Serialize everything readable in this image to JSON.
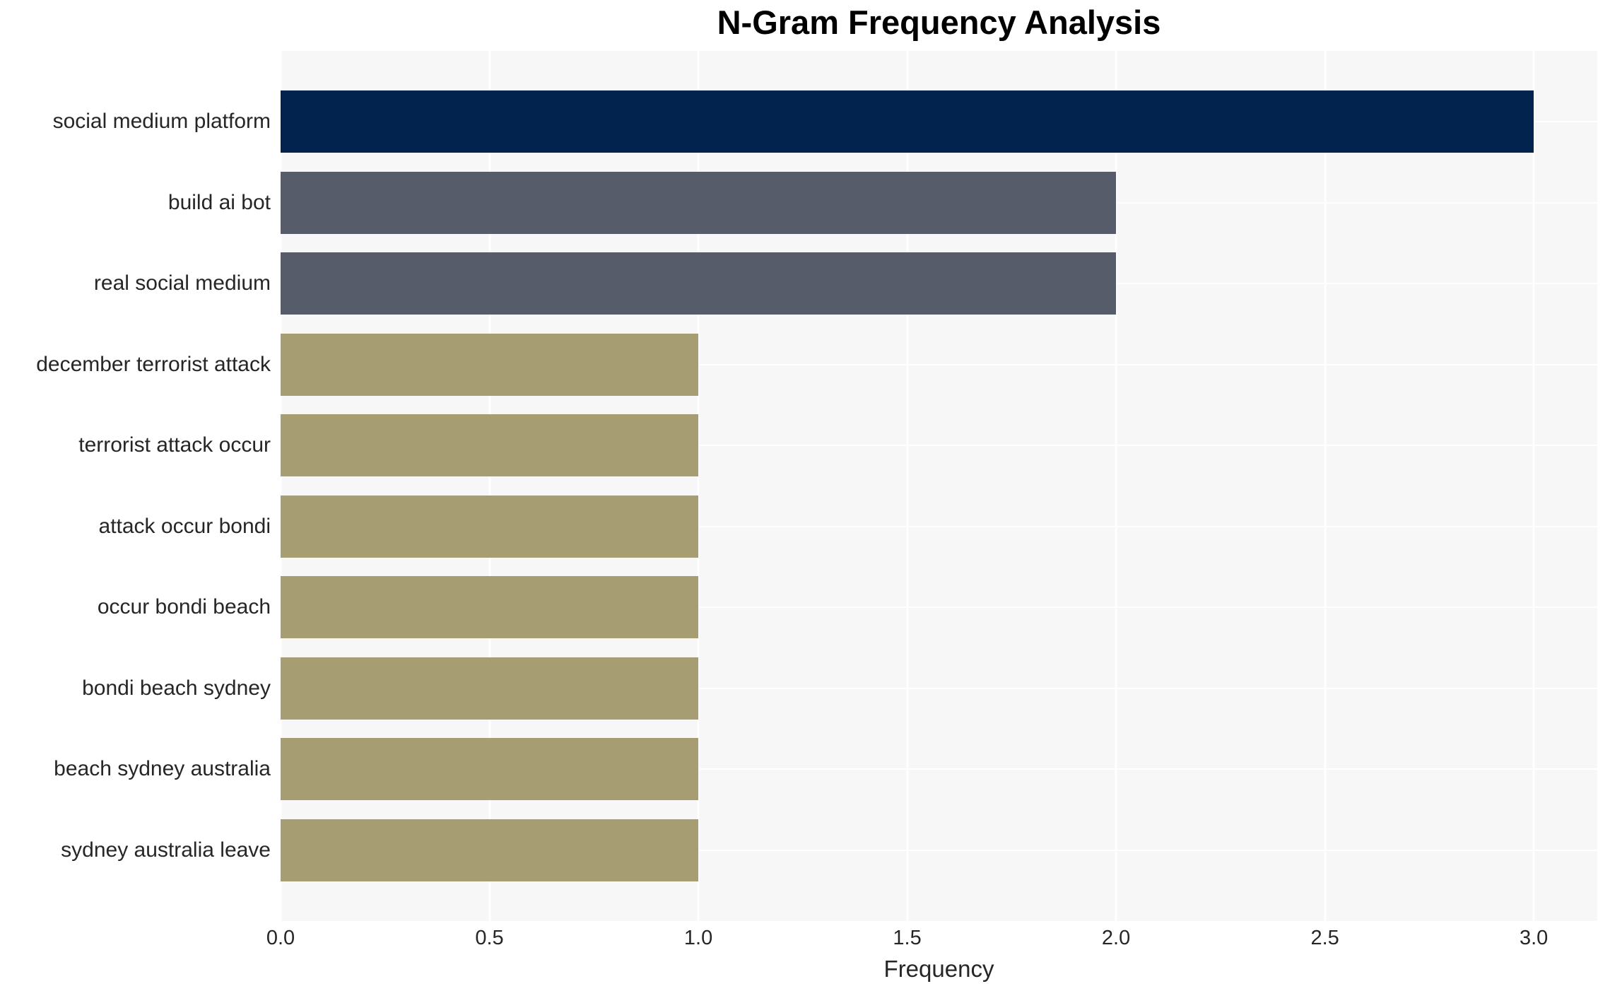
{
  "chart_data": {
    "type": "bar",
    "orientation": "horizontal",
    "title": "N-Gram Frequency Analysis",
    "xlabel": "Frequency",
    "ylabel": "",
    "categories": [
      "social medium platform",
      "build ai bot",
      "real social medium",
      "december terrorist attack",
      "terrorist attack occur",
      "attack occur bondi",
      "occur bondi beach",
      "bondi beach sydney",
      "beach sydney australia",
      "sydney australia leave"
    ],
    "values": [
      3,
      2,
      2,
      1,
      1,
      1,
      1,
      1,
      1,
      1
    ],
    "bar_colors": [
      "#02234d",
      "#575c6b",
      "#575c6b",
      "#a69d73",
      "#a69d73",
      "#a69d73",
      "#a69d73",
      "#a69d73",
      "#a69d73",
      "#a69d73"
    ],
    "xlim": [
      0,
      3.152
    ],
    "xticks": [
      0,
      0.5,
      1,
      1.5,
      2,
      2.5,
      3
    ],
    "xtick_labels": [
      "0.0",
      "0.5",
      "1.0",
      "1.5",
      "2.0",
      "2.5",
      "3.0"
    ],
    "grid": true,
    "legend": false,
    "colors": {
      "plot_background": "#f7f7f7",
      "gridline": "#ffffff",
      "text": "#262626",
      "title_text": "#000000"
    }
  }
}
